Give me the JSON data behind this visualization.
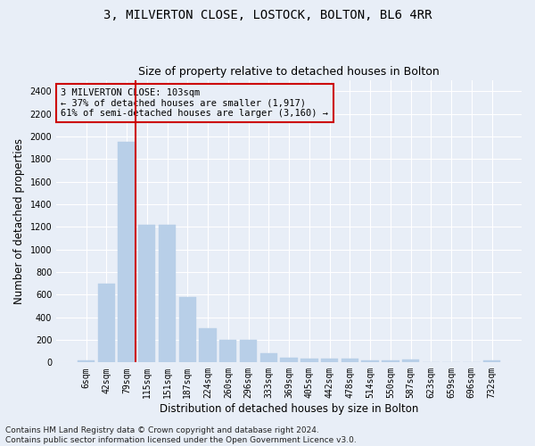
{
  "title": "3, MILVERTON CLOSE, LOSTOCK, BOLTON, BL6 4RR",
  "subtitle": "Size of property relative to detached houses in Bolton",
  "xlabel": "Distribution of detached houses by size in Bolton",
  "ylabel": "Number of detached properties",
  "bar_labels": [
    "6sqm",
    "42sqm",
    "79sqm",
    "115sqm",
    "151sqm",
    "187sqm",
    "224sqm",
    "260sqm",
    "296sqm",
    "333sqm",
    "369sqm",
    "405sqm",
    "442sqm",
    "478sqm",
    "514sqm",
    "550sqm",
    "587sqm",
    "623sqm",
    "659sqm",
    "696sqm",
    "732sqm"
  ],
  "bar_values": [
    15,
    700,
    1950,
    1220,
    1220,
    575,
    305,
    200,
    200,
    80,
    45,
    38,
    38,
    35,
    15,
    15,
    25,
    5,
    5,
    5,
    20
  ],
  "bar_color": "#b8cfe8",
  "bar_edgecolor": "#b8cfe8",
  "ylim": [
    0,
    2500
  ],
  "yticks": [
    0,
    200,
    400,
    600,
    800,
    1000,
    1200,
    1400,
    1600,
    1800,
    2000,
    2200,
    2400
  ],
  "vline_color": "#cc0000",
  "annotation_text": "3 MILVERTON CLOSE: 103sqm\n← 37% of detached houses are smaller (1,917)\n61% of semi-detached houses are larger (3,160) →",
  "annotation_box_color": "#cc0000",
  "footer_line1": "Contains HM Land Registry data © Crown copyright and database right 2024.",
  "footer_line2": "Contains public sector information licensed under the Open Government Licence v3.0.",
  "bg_color": "#e8eef7",
  "grid_color": "#ffffff",
  "title_fontsize": 10,
  "subtitle_fontsize": 9,
  "label_fontsize": 8.5,
  "tick_fontsize": 7,
  "footer_fontsize": 6.5,
  "annotation_fontsize": 7.5
}
